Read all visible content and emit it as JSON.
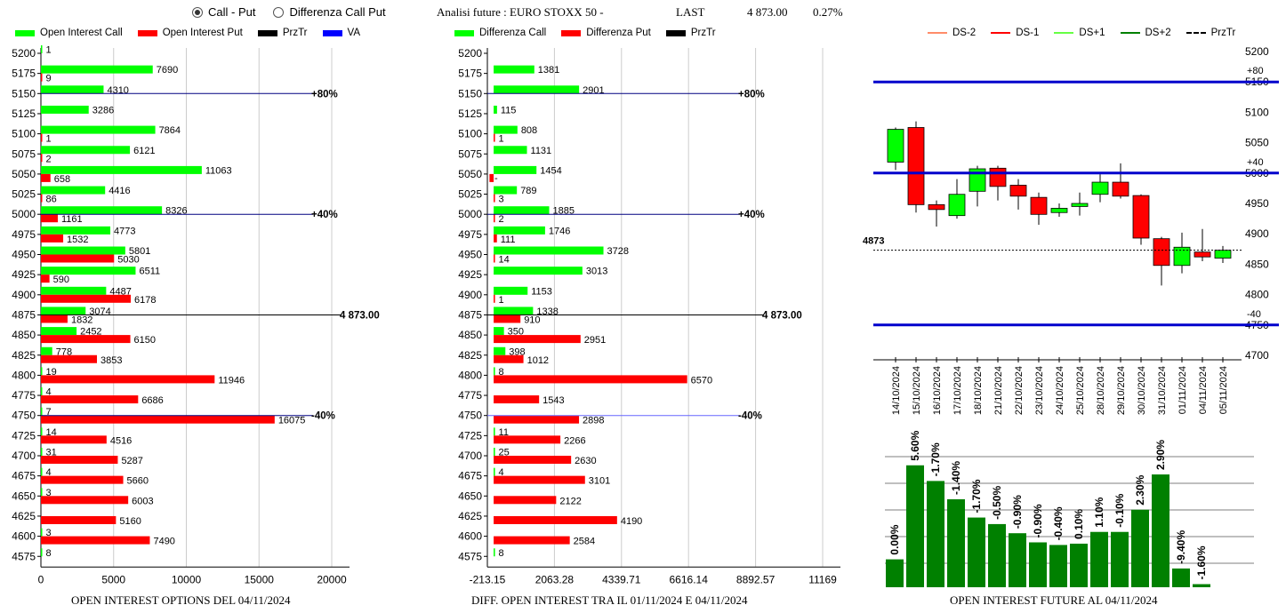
{
  "header": {
    "radio_call_put": "Call - Put",
    "radio_diff": "Differenza Call Put",
    "future_title": "Analisi future : EURO STOXX 50 -",
    "last_label": "LAST",
    "last_value": "4 873.00",
    "change": "0.27%"
  },
  "colors": {
    "call": "#00ff00",
    "put": "#ff0000",
    "prztr": "#000000",
    "va": "#0000ff",
    "ds_line": "#0000cc",
    "volume_bar": "#008000",
    "grid": "#cccccc"
  },
  "legend1": [
    {
      "label": "Open Interest Call",
      "color": "#00ff00"
    },
    {
      "label": "Open Interest Put",
      "color": "#ff0000"
    },
    {
      "label": "PrzTr",
      "color": "#000000"
    },
    {
      "label": "VA",
      "color": "#0000ff"
    }
  ],
  "legend2": [
    {
      "label": "Differenza Call",
      "color": "#00ff00"
    },
    {
      "label": "Differenza Put",
      "color": "#ff0000"
    },
    {
      "label": "PrzTr",
      "color": "#000000"
    }
  ],
  "legend3": [
    {
      "label": "DS-2",
      "color": "#ff8c69",
      "dash": false
    },
    {
      "label": "DS-1",
      "color": "#ff0000",
      "dash": false
    },
    {
      "label": "DS+1",
      "color": "#66ff44",
      "dash": false
    },
    {
      "label": "DS+2",
      "color": "#008000",
      "dash": false
    },
    {
      "label": "PrzTr",
      "color": "#000000",
      "dash": true
    }
  ],
  "chart_data": [
    {
      "type": "bar",
      "title": "OPEN INTEREST OPTIONS DEL 04/11/2024",
      "strikes": [
        "5200",
        "5175",
        "5150",
        "5125",
        "5100",
        "5075",
        "5050",
        "5025",
        "5000",
        "4975",
        "4950",
        "4925",
        "4900",
        "4875",
        "4850",
        "4825",
        "4800",
        "4775",
        "4750",
        "4725",
        "4700",
        "4675",
        "4650",
        "4625",
        "4600",
        "4575"
      ],
      "series": [
        {
          "name": "Open Interest Call",
          "values": [
            1,
            7690,
            4310,
            3286,
            7864,
            6121,
            11063,
            4416,
            8326,
            4773,
            5801,
            6511,
            4487,
            3074,
            2452,
            778,
            19,
            4,
            7,
            14,
            31,
            4,
            3,
            null,
            3,
            8
          ]
        },
        {
          "name": "Open Interest Put",
          "values": [
            null,
            9,
            null,
            null,
            1,
            2,
            658,
            86,
            1161,
            1532,
            5030,
            590,
            6178,
            1832,
            6150,
            3853,
            11946,
            6686,
            16075,
            4516,
            5287,
            5660,
            6003,
            5160,
            7490,
            null
          ]
        }
      ],
      "xlim": [
        0,
        20000
      ],
      "xticks": [
        "0",
        "5000",
        "10000",
        "15000",
        "20000"
      ],
      "ref_lines": [
        {
          "strike": "5150",
          "label": "+80%",
          "color": "#000080"
        },
        {
          "strike": "5000",
          "label": "+40%",
          "color": "#000080"
        },
        {
          "strike": "4875",
          "label": "4 873.00",
          "color": "#000000"
        },
        {
          "strike": "4750",
          "label": "-40%",
          "color": "#000080"
        }
      ]
    },
    {
      "type": "bar",
      "title": "DIFF. OPEN INTEREST TRA IL 01/11/2024 E 04/11/2024",
      "strikes": [
        "5200",
        "5175",
        "5150",
        "5125",
        "5100",
        "5075",
        "5050",
        "5025",
        "5000",
        "4975",
        "4950",
        "4925",
        "4900",
        "4875",
        "4850",
        "4825",
        "4800",
        "4775",
        "4750",
        "4725",
        "4700",
        "4675",
        "4650",
        "4625",
        "4600",
        "4575"
      ],
      "series": [
        {
          "name": "Differenza Call",
          "values": [
            null,
            1381,
            2901,
            115,
            808,
            1131,
            1454,
            789,
            1885,
            1746,
            3728,
            3013,
            1153,
            1338,
            350,
            398,
            8,
            null,
            null,
            11,
            25,
            4,
            null,
            null,
            null,
            8
          ]
        },
        {
          "name": "Differenza Put",
          "values": [
            null,
            null,
            null,
            null,
            1,
            null,
            -141,
            3,
            2,
            111,
            14,
            null,
            1,
            910,
            2951,
            1012,
            6570,
            1543,
            2898,
            2266,
            2630,
            3101,
            2122,
            4190,
            2584,
            null
          ]
        }
      ],
      "xlim": [
        -213.15,
        11169
      ],
      "xticks": [
        "-213.15",
        "2063.28",
        "4339.71",
        "6616.14",
        "8892.57",
        "11169"
      ],
      "ref_lines": [
        {
          "strike": "5150",
          "label": "+80%",
          "color": "#000080"
        },
        {
          "strike": "5000",
          "label": "+40%",
          "color": "#000080"
        },
        {
          "strike": "4875",
          "label": "4 873.00",
          "color": "#000000"
        },
        {
          "strike": "4750",
          "label": "-40%",
          "color": "#6666ff"
        }
      ]
    },
    {
      "type": "candlestick",
      "dates": [
        "14/10/2024",
        "15/10/2024",
        "16/10/2024",
        "17/10/2024",
        "18/10/2024",
        "21/10/2024",
        "22/10/2024",
        "23/10/2024",
        "24/10/2024",
        "25/10/2024",
        "28/10/2024",
        "29/10/2024",
        "30/10/2024",
        "31/10/2024",
        "01/11/2024",
        "04/11/2024",
        "05/11/2024"
      ],
      "ohlc": [
        [
          5018,
          5075,
          5005,
          5072
        ],
        [
          5075,
          5085,
          4935,
          4948
        ],
        [
          4948,
          4955,
          4912,
          4940
        ],
        [
          4930,
          4990,
          4925,
          4965
        ],
        [
          4970,
          5012,
          4945,
          5007
        ],
        [
          5008,
          5012,
          4955,
          4978
        ],
        [
          4980,
          4990,
          4940,
          4962
        ],
        [
          4960,
          4968,
          4915,
          4932
        ],
        [
          4935,
          4950,
          4928,
          4942
        ],
        [
          4945,
          4968,
          4930,
          4950
        ],
        [
          4965,
          4998,
          4952,
          4985
        ],
        [
          4985,
          5016,
          4958,
          4962
        ],
        [
          4963,
          4965,
          4882,
          4893
        ],
        [
          4892,
          4895,
          4815,
          4848
        ],
        [
          4848,
          4902,
          4835,
          4878
        ],
        [
          4870,
          4908,
          4855,
          4862
        ],
        [
          4860,
          4880,
          4852,
          4873
        ]
      ],
      "ylim": [
        4700,
        5200
      ],
      "yticks": [
        "4700",
        "4750",
        "4800",
        "4850",
        "4900",
        "4950",
        "5000",
        "5050",
        "5100",
        "5150",
        "5200"
      ],
      "hlines": [
        {
          "value": 5150,
          "label": "+80"
        },
        {
          "value": 5000,
          "label": "+40"
        },
        {
          "value": 4750,
          "label": "-40"
        }
      ],
      "last_line": {
        "value": 4873,
        "label": "4873"
      }
    },
    {
      "type": "bar",
      "title": "OPEN INTEREST FUTURE AL 04/11/2024",
      "values": [
        0.2,
        0.92,
        0.8,
        0.66,
        0.52,
        0.47,
        0.4,
        0.33,
        0.31,
        0.32,
        0.41,
        0.41,
        0.58,
        0.85,
        0.13,
        0.01
      ],
      "labels": [
        "0.00%",
        "5.60%",
        "-1.70%",
        "-1.40%",
        "-1.70%",
        "-0.50%",
        "-0.90%",
        "-0.90%",
        "-0.40%",
        "0.10%",
        "1.10%",
        "-0.10%",
        "2.30%",
        "2.90%",
        "-9.40%",
        "-1.60%"
      ]
    }
  ]
}
